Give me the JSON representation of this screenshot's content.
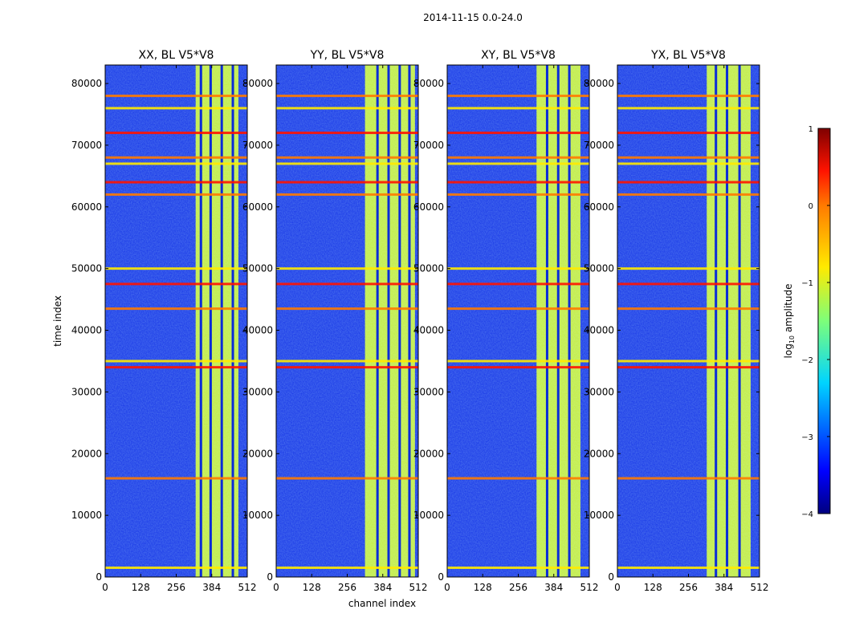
{
  "figure": {
    "suptitle": "2014-11-15 0.0-24.0"
  },
  "chart_data": [
    {
      "type": "heatmap",
      "title": "XX, BL V5*V8",
      "xlabel": "",
      "ylabel": "time index",
      "x": [
        0,
        128,
        256,
        384,
        512
      ],
      "y": [
        0,
        10000,
        20000,
        30000,
        40000,
        50000,
        60000,
        70000,
        80000
      ],
      "xlim": [
        0,
        512
      ],
      "ylim": [
        0,
        83000
      ],
      "value_label": "log10 amplitude",
      "vlim": [
        -4,
        1
      ],
      "features": {
        "bright_band_channels": [
          326,
          480
        ],
        "gaps_channels": [
          345,
          380,
          420,
          460
        ],
        "rfi_rows": [
          1500,
          16000,
          34000,
          35000,
          43500,
          47500,
          50000,
          62000,
          64000,
          67000,
          68000,
          72000,
          76000,
          78000
        ]
      }
    },
    {
      "type": "heatmap",
      "title": "YY, BL V5*V8",
      "xlabel": "channel index",
      "ylabel": "",
      "x": [
        0,
        128,
        256,
        384,
        512
      ],
      "y": [
        0,
        10000,
        20000,
        30000,
        40000,
        50000,
        60000,
        70000,
        80000
      ],
      "xlim": [
        0,
        512
      ],
      "ylim": [
        0,
        83000
      ],
      "value_label": "log10 amplitude",
      "vlim": [
        -4,
        1
      ],
      "features": {
        "bright_band_channels": [
          320,
          500
        ],
        "gaps_channels": [
          365,
          405,
          445,
          480
        ],
        "rfi_rows": [
          1500,
          16000,
          34000,
          35000,
          43500,
          47500,
          50000,
          62000,
          64000,
          67000,
          68000,
          72000,
          76000,
          78000
        ]
      }
    },
    {
      "type": "heatmap",
      "title": "XY, BL V5*V8",
      "xlabel": "",
      "ylabel": "",
      "x": [
        0,
        128,
        256,
        384,
        512
      ],
      "y": [
        0,
        10000,
        20000,
        30000,
        40000,
        50000,
        60000,
        70000,
        80000
      ],
      "xlim": [
        0,
        512
      ],
      "ylim": [
        0,
        83000
      ],
      "value_label": "log10 amplitude",
      "vlim": [
        -4,
        1
      ],
      "features": {
        "bright_band_channels": [
          322,
          480
        ],
        "gaps_channels": [
          360,
          400,
          440
        ],
        "rfi_rows": [
          1500,
          16000,
          34000,
          35000,
          43500,
          47500,
          50000,
          62000,
          64000,
          67000,
          68000,
          72000,
          76000,
          78000
        ]
      }
    },
    {
      "type": "heatmap",
      "title": "YX, BL V5*V8",
      "xlabel": "",
      "ylabel": "",
      "x": [
        0,
        128,
        256,
        384,
        512
      ],
      "y": [
        0,
        10000,
        20000,
        30000,
        40000,
        50000,
        60000,
        70000,
        80000
      ],
      "xlim": [
        0,
        512
      ],
      "ylim": [
        0,
        83000
      ],
      "value_label": "log10 amplitude",
      "vlim": [
        -4,
        1
      ],
      "features": {
        "bright_band_channels": [
          322,
          480
        ],
        "gaps_channels": [
          355,
          395,
          440
        ],
        "rfi_rows": [
          1500,
          16000,
          34000,
          35000,
          43500,
          47500,
          50000,
          62000,
          64000,
          67000,
          68000,
          72000,
          76000,
          78000
        ]
      }
    }
  ],
  "ytick_labels": [
    "0",
    "10000",
    "20000",
    "30000",
    "40000",
    "50000",
    "60000",
    "70000",
    "80000"
  ],
  "xtick_labels": [
    "0",
    "128",
    "256",
    "384",
    "512"
  ],
  "colorbar": {
    "label_prefix": "log",
    "label_sub": "10",
    "label_suffix": " amplitude",
    "ticks": [
      1,
      0,
      -1,
      -2,
      -3,
      -4
    ],
    "tick_labels": [
      "1",
      "0",
      "−1",
      "−2",
      "−3",
      "−4"
    ],
    "min": -4,
    "max": 1
  }
}
